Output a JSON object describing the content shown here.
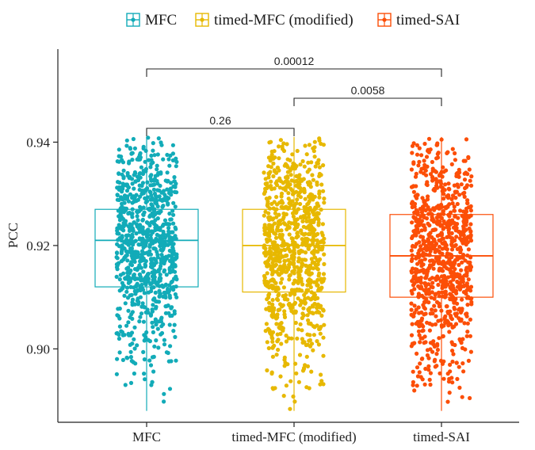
{
  "chart_data": {
    "type": "boxplot",
    "title": "",
    "xlabel": "",
    "ylabel": "PCC",
    "ylim": [
      0.8858,
      0.958
    ],
    "yticks": [
      "0.90",
      "0.92",
      "0.94"
    ],
    "ytick_values": [
      0.9,
      0.92,
      0.94
    ],
    "legend": {
      "position": "top"
    },
    "grid": false,
    "categories": [
      "MFC",
      "timed-MFC (modified)",
      "timed-SAI"
    ],
    "series": [
      {
        "name": "MFC",
        "color": "#12ABB8",
        "box": {
          "min": 0.888,
          "q1": 0.912,
          "median": 0.921,
          "q3": 0.927,
          "max": 0.941
        },
        "jitter_points": 900
      },
      {
        "name": "timed-MFC (modified)",
        "color": "#E7B800",
        "box": {
          "min": 0.888,
          "q1": 0.911,
          "median": 0.92,
          "q3": 0.927,
          "max": 0.941
        },
        "jitter_points": 900
      },
      {
        "name": "timed-SAI",
        "color": "#FC4E07",
        "box": {
          "min": 0.888,
          "q1": 0.91,
          "median": 0.918,
          "q3": 0.926,
          "max": 0.941
        },
        "jitter_points": 900
      }
    ],
    "comparisons": [
      {
        "groups": [
          "MFC",
          "timed-MFC (modified)"
        ],
        "p_value": "0.26"
      },
      {
        "groups": [
          "timed-MFC (modified)",
          "timed-SAI"
        ],
        "p_value": "0.0058"
      },
      {
        "groups": [
          "MFC",
          "timed-SAI"
        ],
        "p_value": "0.00012"
      }
    ]
  }
}
